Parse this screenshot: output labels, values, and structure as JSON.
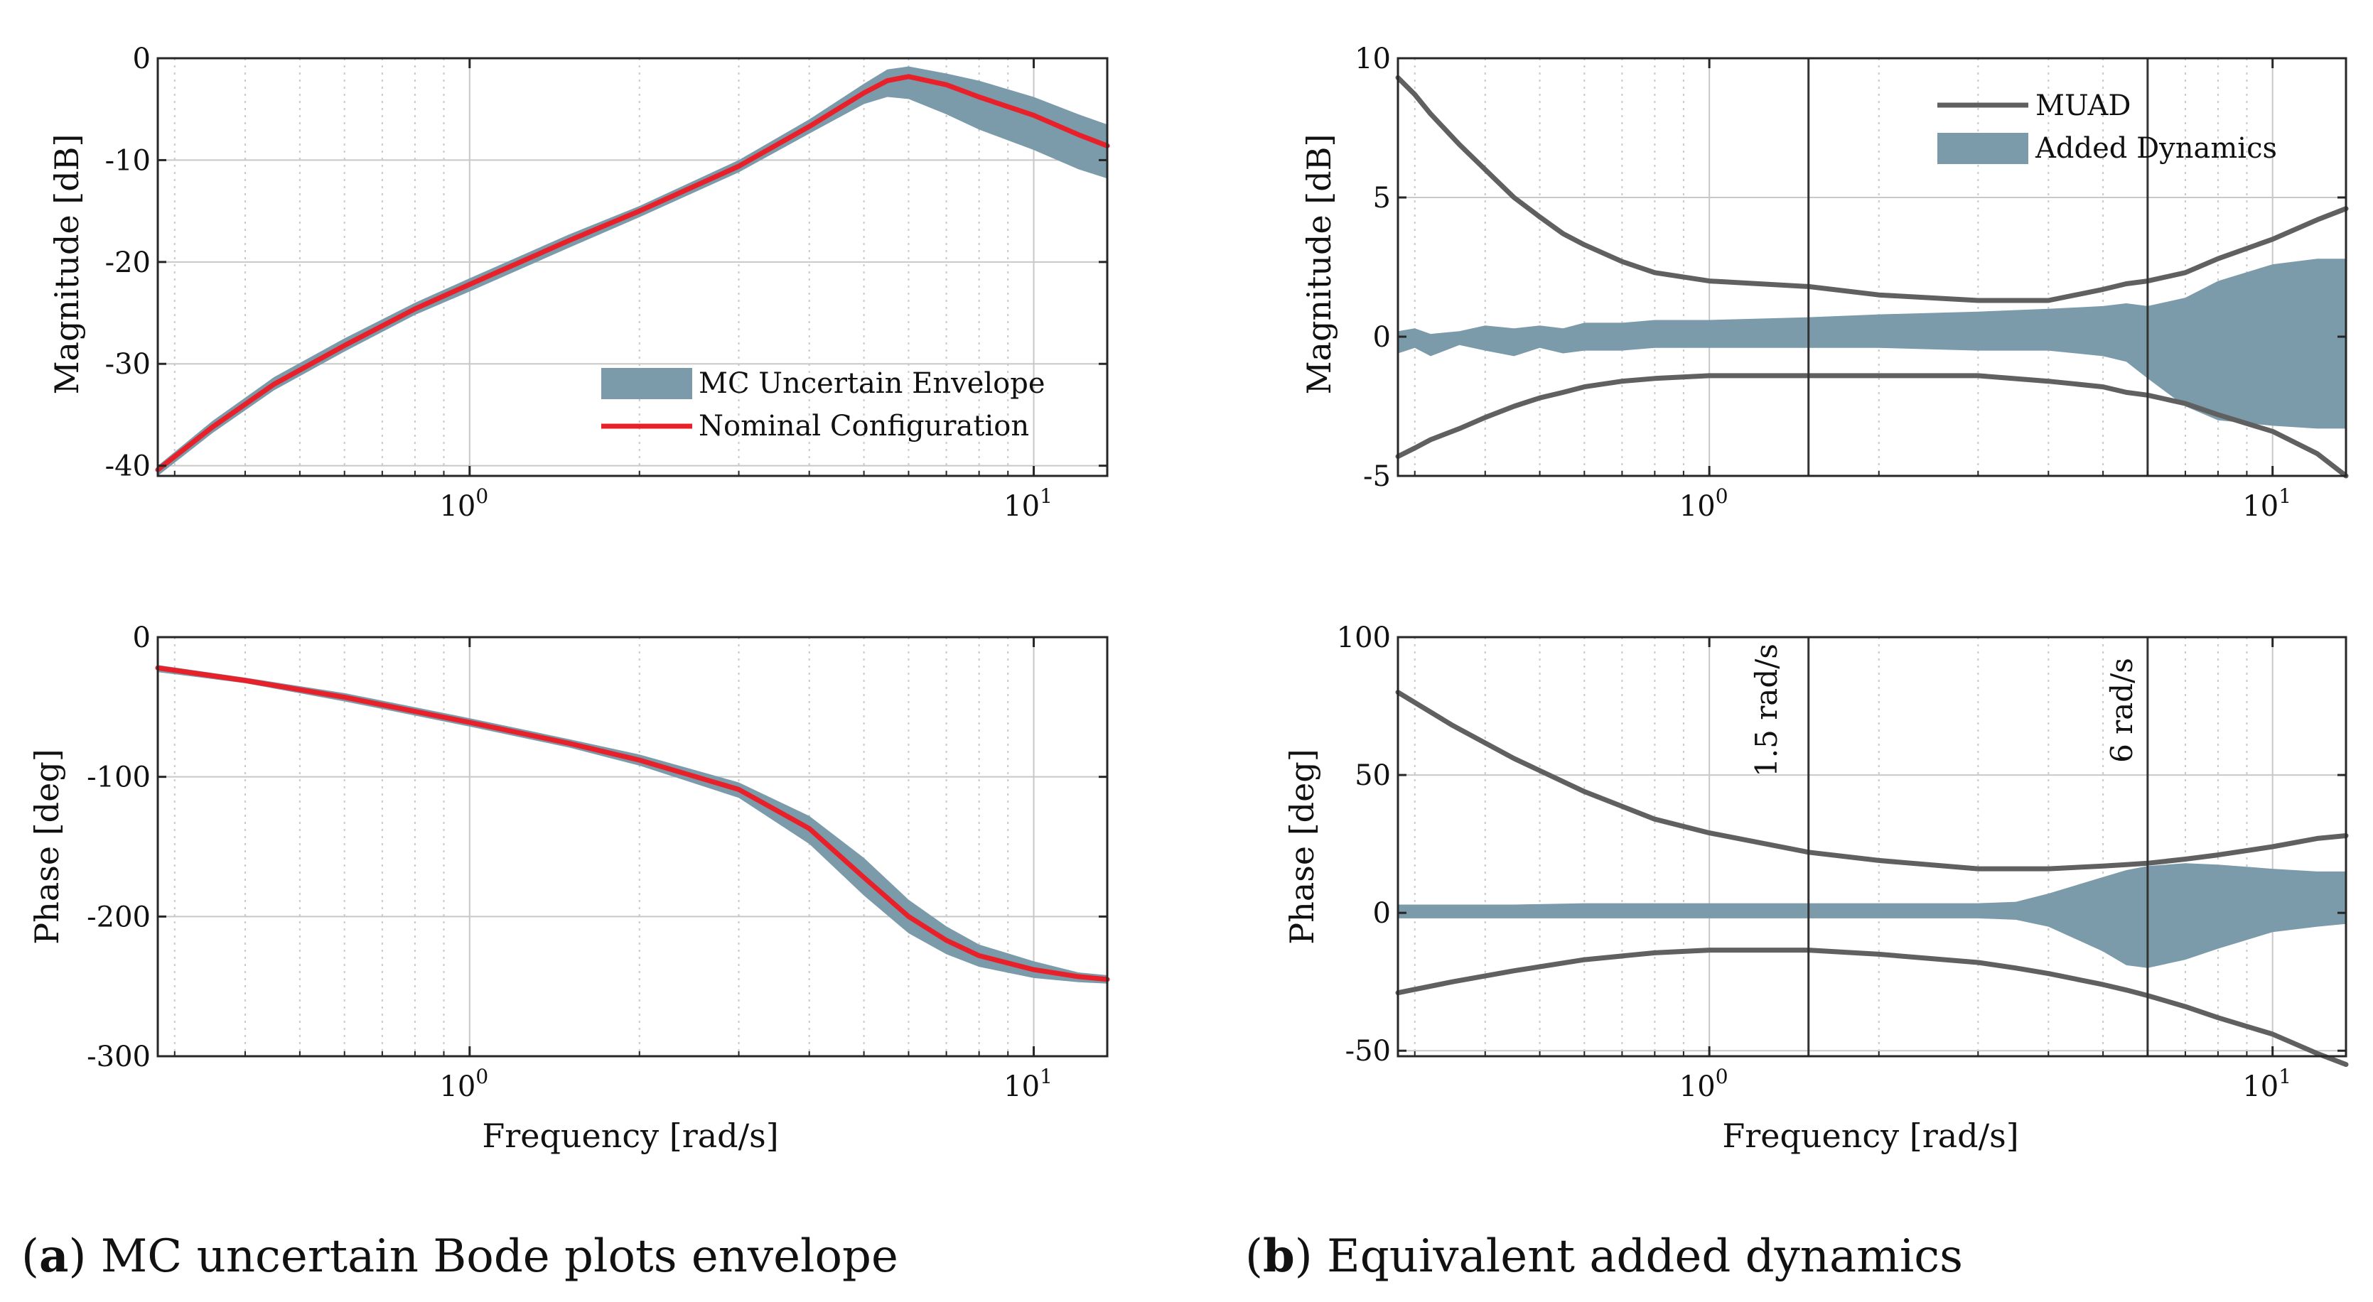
{
  "colors": {
    "envelope": "#7b9baa",
    "nominal": "#e8202a",
    "muad": "#606060",
    "grid": "#c8c8c8",
    "axis": "#262626",
    "marker": "#333333"
  },
  "chart_data": [
    {
      "id": "mag_a",
      "type": "area",
      "title": "",
      "xlabel": "",
      "ylabel": "Magnitude [dB]",
      "xscale": "log",
      "xlim": [
        0.28,
        13.5
      ],
      "ylim": [
        -41,
        0
      ],
      "xticks": [
        {
          "v": 1,
          "base": "10",
          "exp": "0"
        },
        {
          "v": 10,
          "base": "10",
          "exp": "1"
        }
      ],
      "yticks": [
        {
          "v": 0,
          "label": "0"
        },
        {
          "v": -10,
          "label": "-10"
        },
        {
          "v": -20,
          "label": "-20"
        },
        {
          "v": -30,
          "label": "-30"
        },
        {
          "v": -40,
          "label": "-40"
        }
      ],
      "legend_position": "lower-right",
      "legend": [
        {
          "label": "MC Uncertain Envelope",
          "kind": "area"
        },
        {
          "label": "Nominal Configuration",
          "kind": "line"
        }
      ],
      "x": [
        0.28,
        0.35,
        0.45,
        0.6,
        0.8,
        1.0,
        1.5,
        2.0,
        3.0,
        4.0,
        5.0,
        5.5,
        6.0,
        7.0,
        8.0,
        10.0,
        12.0,
        13.5
      ],
      "series": [
        {
          "name": "MC Uncertain Envelope (upper)",
          "values": [
            -40.0,
            -35.6,
            -31.3,
            -27.5,
            -24.0,
            -21.6,
            -17.3,
            -14.5,
            -10.0,
            -6.0,
            -2.5,
            -1.1,
            -0.8,
            -1.5,
            -2.2,
            -3.8,
            -5.5,
            -6.5
          ]
        },
        {
          "name": "MC Uncertain Envelope (lower)",
          "values": [
            -41.0,
            -36.8,
            -32.6,
            -28.8,
            -25.2,
            -22.9,
            -18.6,
            -15.6,
            -11.2,
            -7.4,
            -4.5,
            -3.8,
            -4.0,
            -5.5,
            -7.0,
            -9.0,
            -10.9,
            -11.8
          ]
        },
        {
          "name": "Nominal Configuration",
          "values": [
            -40.4,
            -36.2,
            -32.0,
            -28.2,
            -24.6,
            -22.2,
            -17.9,
            -15.0,
            -10.6,
            -6.7,
            -3.4,
            -2.2,
            -1.8,
            -2.6,
            -3.8,
            -5.6,
            -7.5,
            -8.6
          ]
        }
      ]
    },
    {
      "id": "phase_a",
      "type": "area",
      "title": "",
      "xlabel": "Frequency [rad/s]",
      "ylabel": "Phase [deg]",
      "xscale": "log",
      "xlim": [
        0.28,
        13.5
      ],
      "ylim": [
        -300,
        0
      ],
      "xticks": [
        {
          "v": 1,
          "base": "10",
          "exp": "0"
        },
        {
          "v": 10,
          "base": "10",
          "exp": "1"
        }
      ],
      "yticks": [
        {
          "v": 0,
          "label": "0"
        },
        {
          "v": -100,
          "label": "-100"
        },
        {
          "v": -200,
          "label": "-200"
        },
        {
          "v": -300,
          "label": "-300"
        }
      ],
      "x": [
        0.28,
        0.4,
        0.6,
        1.0,
        1.5,
        2.0,
        3.0,
        4.0,
        5.0,
        6.0,
        7.0,
        8.0,
        10.0,
        12.0,
        13.5
      ],
      "series": [
        {
          "name": "MC Uncertain Envelope (upper)",
          "values": [
            -20,
            -29,
            -40,
            -58,
            -73,
            -84,
            -104,
            -128,
            -158,
            -188,
            -207,
            -220,
            -232,
            -240,
            -242
          ]
        },
        {
          "name": "MC Uncertain Envelope (lower)",
          "values": [
            -25,
            -33,
            -46,
            -64,
            -79,
            -92,
            -115,
            -148,
            -185,
            -212,
            -227,
            -236,
            -244,
            -247,
            -248
          ]
        },
        {
          "name": "Nominal Configuration",
          "values": [
            -22,
            -31,
            -43,
            -61,
            -76,
            -88,
            -109,
            -137,
            -172,
            -200,
            -217,
            -228,
            -238,
            -243,
            -245
          ]
        }
      ]
    },
    {
      "id": "mag_b",
      "type": "area",
      "title": "",
      "xlabel": "",
      "ylabel": "Magnitude [dB]",
      "xscale": "log",
      "xlim": [
        0.28,
        13.5
      ],
      "ylim": [
        -5,
        10
      ],
      "xticks": [
        {
          "v": 1,
          "base": "10",
          "exp": "0"
        },
        {
          "v": 10,
          "base": "10",
          "exp": "1"
        }
      ],
      "yticks": [
        {
          "v": 10,
          "label": "10"
        },
        {
          "v": 5,
          "label": "5"
        },
        {
          "v": 0,
          "label": "0"
        },
        {
          "v": -5,
          "label": "-5"
        }
      ],
      "legend_position": "top-right",
      "legend": [
        {
          "label": "MUAD",
          "kind": "line"
        },
        {
          "label": "Added Dynamics",
          "kind": "area"
        }
      ],
      "markers": [
        {
          "v": 1.5,
          "label": "1.5 rad/s"
        },
        {
          "v": 6,
          "label": "6 rad/s"
        }
      ],
      "x": [
        0.28,
        0.3,
        0.32,
        0.36,
        0.4,
        0.45,
        0.5,
        0.55,
        0.6,
        0.7,
        0.8,
        1.0,
        1.5,
        2.0,
        3.0,
        4.0,
        5.0,
        5.5,
        6.0,
        7.0,
        8.0,
        10.0,
        12.0,
        13.5
      ],
      "series": [
        {
          "name": "MUAD (upper)",
          "values": [
            9.3,
            8.7,
            8.0,
            6.9,
            6.0,
            5.0,
            4.3,
            3.7,
            3.3,
            2.7,
            2.3,
            2.0,
            1.8,
            1.5,
            1.3,
            1.3,
            1.7,
            1.9,
            2.0,
            2.3,
            2.8,
            3.5,
            4.2,
            4.6
          ]
        },
        {
          "name": "MUAD (lower)",
          "values": [
            -4.3,
            -4.0,
            -3.7,
            -3.3,
            -2.9,
            -2.5,
            -2.2,
            -2.0,
            -1.8,
            -1.6,
            -1.5,
            -1.4,
            -1.4,
            -1.4,
            -1.4,
            -1.6,
            -1.8,
            -2.0,
            -2.1,
            -2.4,
            -2.8,
            -3.4,
            -4.2,
            -5.0
          ]
        },
        {
          "name": "Added Dynamics (upper)",
          "values": [
            0.2,
            0.3,
            0.1,
            0.2,
            0.4,
            0.3,
            0.4,
            0.3,
            0.5,
            0.5,
            0.6,
            0.6,
            0.7,
            0.8,
            0.9,
            1.0,
            1.1,
            1.2,
            1.1,
            1.4,
            2.0,
            2.6,
            2.8,
            2.8
          ]
        },
        {
          "name": "Added Dynamics (lower)",
          "values": [
            -0.6,
            -0.4,
            -0.7,
            -0.3,
            -0.5,
            -0.7,
            -0.4,
            -0.6,
            -0.5,
            -0.5,
            -0.4,
            -0.4,
            -0.4,
            -0.4,
            -0.5,
            -0.5,
            -0.7,
            -0.9,
            -1.5,
            -2.5,
            -3.0,
            -3.2,
            -3.3,
            -3.3
          ]
        }
      ]
    },
    {
      "id": "phase_b",
      "type": "area",
      "title": "",
      "xlabel": "Frequency [rad/s]",
      "ylabel": "Phase [deg]",
      "xscale": "log",
      "xlim": [
        0.28,
        13.5
      ],
      "ylim": [
        -52,
        100
      ],
      "xticks": [
        {
          "v": 1,
          "base": "10",
          "exp": "0"
        },
        {
          "v": 10,
          "base": "10",
          "exp": "1"
        }
      ],
      "yticks": [
        {
          "v": 100,
          "label": "100"
        },
        {
          "v": 50,
          "label": "50"
        },
        {
          "v": 0,
          "label": "0"
        },
        {
          "v": -50,
          "label": "-50"
        }
      ],
      "markers": [
        {
          "v": 1.5,
          "label": "1.5 rad/s"
        },
        {
          "v": 6,
          "label": "6 rad/s"
        }
      ],
      "x": [
        0.28,
        0.35,
        0.45,
        0.6,
        0.8,
        1.0,
        1.5,
        2.0,
        3.0,
        3.5,
        4.0,
        5.0,
        5.5,
        6.0,
        7.0,
        8.0,
        10.0,
        12.0,
        13.5
      ],
      "series": [
        {
          "name": "MUAD (upper)",
          "values": [
            80,
            68,
            56,
            44,
            34,
            29,
            22,
            19,
            16,
            16,
            16,
            17,
            17.5,
            18,
            19.5,
            21,
            24,
            27,
            28
          ]
        },
        {
          "name": "MUAD (lower)",
          "values": [
            -29,
            -25,
            -21,
            -17,
            -14.5,
            -13.5,
            -13.5,
            -15,
            -18,
            -20,
            -22,
            -26,
            -28,
            -30,
            -34,
            -38,
            -44,
            -51,
            -55
          ]
        },
        {
          "name": "Added Dynamics (upper)",
          "values": [
            3,
            3,
            3,
            3.5,
            3.5,
            3.5,
            3.5,
            3.5,
            3.5,
            4,
            7,
            13,
            15.5,
            17,
            18,
            17.5,
            16,
            15,
            15
          ]
        },
        {
          "name": "Added Dynamics (lower)",
          "values": [
            -2,
            -2,
            -2,
            -2,
            -2,
            -2,
            -2,
            -2,
            -2,
            -2.5,
            -5,
            -14,
            -19,
            -20,
            -17,
            -13,
            -7,
            -5,
            -4
          ]
        }
      ]
    }
  ],
  "captions": [
    {
      "letter": "a",
      "text": "MC uncertain Bode plots envelope"
    },
    {
      "letter": "b",
      "text": "Equivalent added dynamics"
    }
  ]
}
